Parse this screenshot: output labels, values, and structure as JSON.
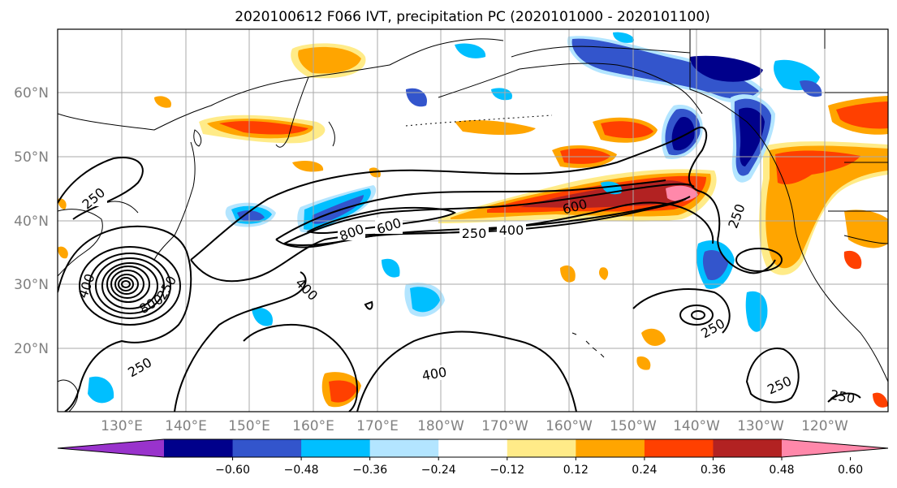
{
  "title": "2020100612 F066 IVT, precipitation PC (2020101000 - 2020101100)",
  "lat_labels": [
    "60°N",
    "50°N",
    "40°N",
    "30°N",
    "20°N"
  ],
  "lon_labels": [
    "130°E",
    "140°E",
    "150°E",
    "160°E",
    "170°E",
    "180°W",
    "170°W",
    "160°W",
    "150°W",
    "140°W",
    "130°W",
    "120°W"
  ],
  "colorbar": {
    "ticks": [
      "−0.60",
      "−0.48",
      "−0.36",
      "−0.24",
      "−0.12",
      "0.12",
      "0.24",
      "0.36",
      "0.48",
      "0.60"
    ],
    "colors": [
      "#9933cc",
      "#00008b",
      "#3355cc",
      "#00bfff",
      "#b3e5ff",
      "#ffffff",
      "#ffeb88",
      "#ffa500",
      "#ff4000",
      "#b22222",
      "#ff88aa"
    ]
  },
  "contour_labels": [
    "250",
    "250",
    "400",
    "800",
    "600",
    "600",
    "400",
    "250",
    "250",
    "400",
    "400",
    "250",
    "250",
    "250",
    "250",
    "800"
  ],
  "colors": {
    "frame": "#000000",
    "grid": "#aaaaaa",
    "coast": "#000000",
    "contour": "#000000"
  }
}
